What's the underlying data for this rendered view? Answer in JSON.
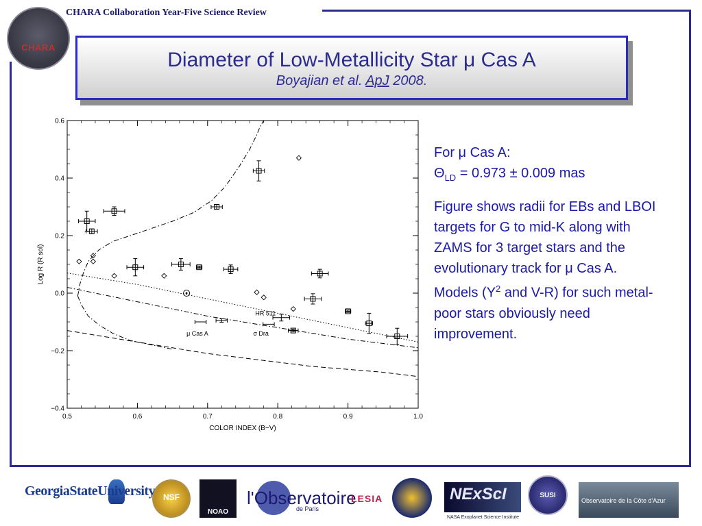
{
  "header": {
    "text": "CHARA Collaboration Year-Five Science Review",
    "seal_word": "CHARA"
  },
  "title": {
    "main": "Diameter of Low-Metallicity Star μ Cas A",
    "sub_authors": "Boyajian et al. ",
    "sub_journal": "ApJ",
    "sub_year": " 2008."
  },
  "sidebar": {
    "for_label": "For μ Cas A:",
    "theta_symbol": "Θ",
    "theta_sub": "LD",
    "theta_value": " = 0.973 ± 0.009 mas",
    "desc_a": "Figure shows radii for EBs and LBOI targets for G to mid-K along with ZAMS for 3 target stars and the evolutionary track for μ Cas A. Models (Y",
    "desc_sup": "2",
    "desc_b": " and V-R) for such metal-poor stars obviously need improvement."
  },
  "logos": {
    "gsu": "GeorgiaStateUniversity",
    "nsf": "NSF",
    "noao": "NOAO",
    "obs": "l'Observatoire",
    "obs_sub": "de Paris",
    "lesia": "LESIA",
    "nexsci": "NExScI",
    "nexsci_sub": "NASA Exoplanet Science Institute",
    "susi": "SUSI",
    "oca": "Observatoire de la Côte d'Azur"
  },
  "chart_data": {
    "type": "scatter",
    "xlabel": "COLOR INDEX (B−V)",
    "ylabel": "Log R (R sol)",
    "xlim": [
      0.5,
      1.0
    ],
    "ylim": [
      -0.4,
      0.6
    ],
    "xticks": [
      0.5,
      0.6,
      0.7,
      0.8,
      0.9,
      1.0
    ],
    "xtick_labels": [
      "0.5",
      "0.6",
      "0.7",
      "0.8",
      "0.9",
      "1.0"
    ],
    "yticks": [
      -0.4,
      -0.2,
      0.0,
      0.2,
      0.4,
      0.6
    ],
    "ytick_labels": [
      "−0.4",
      "−0.2",
      "0.0",
      "0.2",
      "0.4",
      "0.6"
    ],
    "series": [
      {
        "marker": "square-errorbar",
        "points": [
          {
            "x": 0.528,
            "y": 0.25,
            "xerr": 0.012,
            "yerr": 0.035
          },
          {
            "x": 0.535,
            "y": 0.215,
            "xerr": 0.008,
            "yerr": 0.008
          },
          {
            "x": 0.567,
            "y": 0.285,
            "xerr": 0.015,
            "yerr": 0.015
          },
          {
            "x": 0.597,
            "y": 0.09,
            "xerr": 0.012,
            "yerr": 0.03
          },
          {
            "x": 0.662,
            "y": 0.1,
            "xerr": 0.013,
            "yerr": 0.02
          },
          {
            "x": 0.688,
            "y": 0.09,
            "xerr": 0.004,
            "yerr": 0.004
          },
          {
            "x": 0.713,
            "y": 0.3,
            "xerr": 0.008,
            "yerr": 0.008
          },
          {
            "x": 0.733,
            "y": 0.083,
            "xerr": 0.01,
            "yerr": 0.015
          },
          {
            "x": 0.773,
            "y": 0.425,
            "xerr": 0.008,
            "yerr": 0.035
          },
          {
            "x": 0.822,
            "y": -0.13,
            "xerr": 0.007,
            "yerr": 0.004
          },
          {
            "x": 0.85,
            "y": -0.02,
            "xerr": 0.012,
            "yerr": 0.018
          },
          {
            "x": 0.86,
            "y": 0.068,
            "xerr": 0.012,
            "yerr": 0.015
          },
          {
            "x": 0.9,
            "y": -0.063,
            "xerr": 0.004,
            "yerr": 0.004
          },
          {
            "x": 0.93,
            "y": -0.105,
            "xerr": 0.005,
            "yerr": 0.035
          },
          {
            "x": 0.97,
            "y": -0.15,
            "xerr": 0.015,
            "yerr": 0.028
          }
        ]
      },
      {
        "marker": "errorbar-nosquare",
        "points": [
          {
            "x": 0.69,
            "y": -0.1,
            "xerr": 0.008,
            "yerr": 0.0
          },
          {
            "x": 0.72,
            "y": -0.095,
            "xerr": 0.008,
            "yerr": 0.006
          },
          {
            "x": 0.787,
            "y": -0.108,
            "xerr": 0.008,
            "yerr": 0.0
          },
          {
            "x": 0.805,
            "y": -0.085,
            "xerr": 0.012,
            "yerr": 0.012
          }
        ]
      },
      {
        "marker": "diamond",
        "points": [
          {
            "x": 0.517,
            "y": 0.11
          },
          {
            "x": 0.537,
            "y": 0.13
          },
          {
            "x": 0.537,
            "y": 0.11
          },
          {
            "x": 0.567,
            "y": 0.06
          },
          {
            "x": 0.638,
            "y": 0.06
          },
          {
            "x": 0.77,
            "y": 0.003
          },
          {
            "x": 0.78,
            "y": -0.015
          },
          {
            "x": 0.822,
            "y": -0.055
          },
          {
            "x": 0.83,
            "y": 0.47
          }
        ]
      },
      {
        "marker": "sun",
        "points": [
          {
            "x": 0.67,
            "y": 0.0
          }
        ]
      }
    ],
    "curves": [
      {
        "style": "dashdot",
        "x": [
          0.515,
          0.518,
          0.523,
          0.53,
          0.545,
          0.565,
          0.59,
          0.62,
          0.65,
          0.68,
          0.705,
          0.725,
          0.745,
          0.76,
          0.77,
          0.775,
          0.78
        ],
        "y": [
          -0.01,
          0.03,
          0.07,
          0.11,
          0.15,
          0.18,
          0.2,
          0.225,
          0.25,
          0.28,
          0.32,
          0.37,
          0.44,
          0.5,
          0.55,
          0.58,
          0.6
        ]
      },
      {
        "style": "dashdot",
        "x": [
          0.515,
          0.52,
          0.53,
          0.545,
          0.565,
          0.59,
          0.62,
          0.65
        ],
        "y": [
          -0.01,
          -0.04,
          -0.08,
          -0.11,
          -0.14,
          -0.165,
          -0.18,
          -0.195
        ]
      },
      {
        "style": "dotted",
        "x": [
          0.5,
          0.55,
          0.6,
          0.65,
          0.7,
          0.75,
          0.8,
          0.85,
          0.9,
          0.95,
          1.0
        ],
        "y": [
          0.07,
          0.05,
          0.03,
          0.005,
          -0.02,
          -0.045,
          -0.07,
          -0.095,
          -0.12,
          -0.145,
          -0.17
        ]
      },
      {
        "style": "dashdot",
        "x": [
          0.5,
          0.55,
          0.6,
          0.65,
          0.7,
          0.75,
          0.8,
          0.85,
          0.9,
          0.95,
          1.0
        ],
        "y": [
          0.02,
          -0.005,
          -0.03,
          -0.055,
          -0.08,
          -0.1,
          -0.12,
          -0.14,
          -0.16,
          -0.175,
          -0.19
        ]
      },
      {
        "style": "dashed",
        "x": [
          0.5,
          0.55,
          0.6,
          0.65,
          0.7,
          0.75,
          0.8,
          0.85,
          0.9,
          0.95,
          1.0
        ],
        "y": [
          -0.13,
          -0.15,
          -0.17,
          -0.19,
          -0.21,
          -0.225,
          -0.24,
          -0.255,
          -0.265,
          -0.275,
          -0.29
        ]
      }
    ],
    "annotations": [
      {
        "text": "HR 511",
        "x": 0.768,
        "y": -0.07
      },
      {
        "text": "μ Cas A",
        "x": 0.67,
        "y": -0.14
      },
      {
        "text": "σ Dra",
        "x": 0.765,
        "y": -0.14
      }
    ]
  }
}
